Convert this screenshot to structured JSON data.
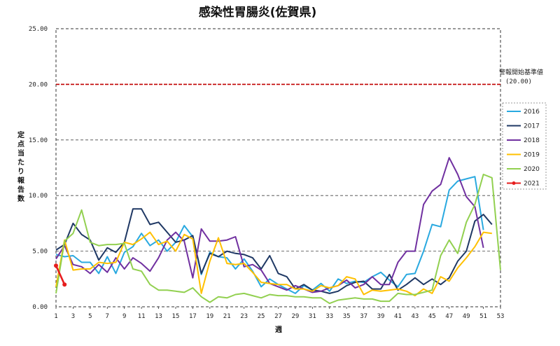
{
  "chart_data": {
    "type": "line",
    "title": "感染性胃腸炎(佐賀県)",
    "xlabel": "週",
    "ylabel": "定点当たり報告数",
    "xlim": [
      1,
      53
    ],
    "ylim": [
      0,
      25
    ],
    "x_ticks": [
      1,
      3,
      5,
      7,
      9,
      11,
      13,
      15,
      17,
      19,
      21,
      23,
      25,
      27,
      29,
      31,
      33,
      35,
      37,
      39,
      41,
      43,
      45,
      47,
      49,
      51,
      53
    ],
    "y_ticks": [
      "0.00",
      "5.00",
      "10.00",
      "15.00",
      "20.00",
      "25.00"
    ],
    "grid": "horizontal-dashed",
    "legend_position": "right",
    "threshold": {
      "value": 20.0,
      "label_line1": "警報開始基準値",
      "label_line2": "(20.00)",
      "color": "#c00000"
    },
    "series": [
      {
        "name": "2016",
        "color": "#29a9e0",
        "values": [
          4.7,
          4.5,
          4.6,
          4.0,
          4.0,
          3.0,
          4.5,
          3.0,
          4.9,
          5.4,
          6.6,
          5.5,
          6.0,
          5.0,
          5.8,
          7.3,
          6.3,
          2.9,
          4.9,
          4.5,
          4.4,
          3.4,
          4.3,
          3.2,
          1.8,
          2.5,
          2.0,
          1.6,
          1.2,
          1.9,
          1.5,
          2.1,
          1.4,
          2.5,
          2.1,
          2.3,
          2.2,
          2.7,
          3.1,
          2.4,
          1.8,
          2.9,
          3.0,
          5.0,
          7.4,
          7.2,
          10.5,
          11.3,
          11.5,
          11.7,
          6.9
        ]
      },
      {
        "name": "2017",
        "color": "#1f3864",
        "values": [
          5.1,
          5.6,
          7.5,
          6.5,
          6.0,
          4.2,
          5.3,
          4.9,
          5.8,
          8.8,
          8.8,
          7.4,
          7.6,
          6.7,
          5.8,
          6.0,
          6.4,
          3.0,
          4.8,
          4.5,
          5.0,
          4.8,
          4.7,
          4.4,
          3.4,
          4.6,
          3.0,
          2.7,
          1.6,
          2.0,
          1.5,
          1.4,
          1.2,
          1.4,
          1.9,
          2.2,
          2.3,
          1.6,
          1.6,
          2.9,
          1.5,
          2.0,
          2.6,
          2.0,
          2.5,
          2.0,
          2.6,
          4.1,
          5.0,
          7.7,
          8.3,
          7.4
        ]
      },
      {
        "name": "2018",
        "color": "#7030a0",
        "values": [
          4.3,
          5.5,
          3.8,
          3.6,
          3.0,
          3.8,
          3.1,
          4.4,
          3.4,
          4.4,
          3.9,
          3.2,
          4.4,
          6.0,
          6.7,
          5.9,
          2.6,
          7.0,
          5.9,
          5.9,
          6.0,
          6.3,
          3.6,
          3.8,
          3.3,
          2.1,
          1.8,
          1.5,
          1.9,
          1.6,
          1.3,
          1.4,
          1.7,
          1.9,
          2.4,
          1.7,
          2.0,
          2.7,
          2.0,
          2.0,
          4.0,
          5.0,
          5.0,
          9.2,
          10.4,
          11.0,
          13.4,
          11.9,
          9.9,
          9.0,
          5.3
        ]
      },
      {
        "name": "2019",
        "color": "#ffc000",
        "values": [
          1.8,
          6.0,
          3.3,
          3.4,
          3.4,
          4.0,
          3.9,
          4.0,
          5.8,
          5.6,
          6.1,
          6.7,
          5.6,
          5.9,
          5.0,
          6.5,
          6.1,
          1.2,
          4.1,
          6.2,
          3.9,
          3.8,
          3.9,
          3.1,
          2.2,
          2.1,
          2.0,
          2.0,
          1.6,
          1.6,
          1.4,
          1.9,
          1.7,
          1.9,
          2.7,
          2.5,
          1.1,
          1.5,
          1.4,
          1.5,
          1.6,
          1.4,
          1.0,
          1.6,
          1.2,
          2.7,
          2.3,
          3.5,
          4.4,
          5.4,
          6.7,
          6.6
        ]
      },
      {
        "name": "2020",
        "color": "#92d050",
        "values": [
          1.2,
          5.9,
          6.6,
          8.7,
          5.8,
          5.5,
          5.6,
          5.6,
          5.7,
          3.4,
          3.2,
          2.0,
          1.5,
          1.5,
          1.4,
          1.3,
          1.7,
          0.9,
          0.4,
          0.9,
          0.8,
          1.1,
          1.2,
          1.0,
          0.8,
          1.1,
          1.0,
          1.0,
          0.9,
          0.9,
          0.8,
          0.8,
          0.3,
          0.6,
          0.7,
          0.8,
          0.7,
          0.7,
          0.5,
          0.5,
          1.2,
          1.1,
          1.1,
          1.3,
          1.5,
          4.6,
          6.0,
          4.8,
          7.6,
          9.2,
          11.9,
          11.6,
          3.3
        ]
      },
      {
        "name": "2021",
        "color": "#e61e1e",
        "values": [
          3.7,
          2.0
        ]
      }
    ]
  }
}
